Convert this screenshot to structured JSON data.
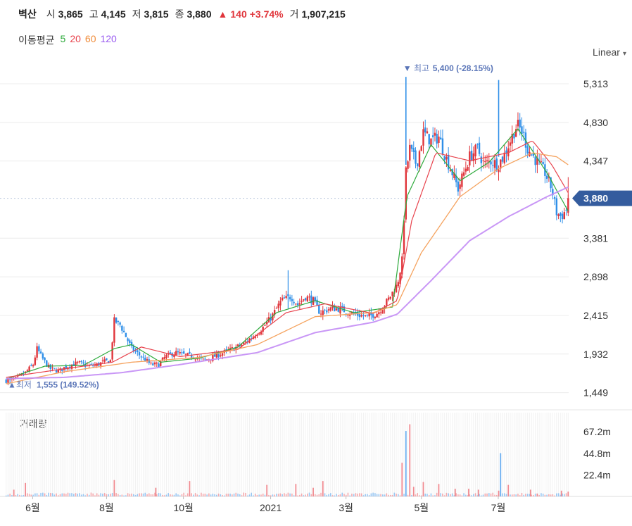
{
  "header": {
    "name": "벽산",
    "open_label": "시",
    "open": "3,865",
    "high_label": "고",
    "high": "4,145",
    "low_label": "저",
    "low": "3,815",
    "close_label": "종",
    "close": "3,880",
    "change_arrow": "▲",
    "change": "140",
    "change_pct": "+3.74%",
    "volume_label": "거",
    "volume": "1,907,215"
  },
  "ma_legend": {
    "title": "이동평균",
    "items": [
      {
        "label": "5",
        "color": "#2eaa3c"
      },
      {
        "label": "20",
        "color": "#e8434d"
      },
      {
        "label": "60",
        "color": "#f08c3a"
      },
      {
        "label": "120",
        "color": "#9a5cf0"
      }
    ]
  },
  "scale_button": {
    "label": "Linear",
    "chevron": "▾"
  },
  "volume_panel": {
    "title": "거래량"
  },
  "colors": {
    "up": "#e0353b",
    "down": "#2f8fe8",
    "grid": "#ececec",
    "price_tag_bg": "#345c9e",
    "annotation": "#5b76b8",
    "ma5": "#2eaa3c",
    "ma20": "#e8434d",
    "ma60": "#f5a35f",
    "ma120": "#c38cf5"
  },
  "chart_data": {
    "type": "candlestick",
    "price_axis": {
      "ticks": [
        1449,
        1932,
        2415,
        2898,
        3381,
        3880,
        4347,
        4830,
        5313
      ],
      "tick_labels": [
        "1,449",
        "1,932",
        "2,415",
        "2,898",
        "3,381",
        "4,347",
        "4,830",
        "5,313"
      ],
      "current_price_label": "3,880",
      "range": [
        1340,
        5480
      ]
    },
    "volume_axis": {
      "tick_labels": [
        "22.4m",
        "44.8m",
        "67.2m"
      ],
      "ticks": [
        22.4,
        44.8,
        67.2
      ],
      "unit": "m",
      "range": [
        0,
        90
      ]
    },
    "x_axis": {
      "tick_labels": [
        "6월",
        "8월",
        "10월",
        "2021",
        "3월",
        "5월",
        "7월"
      ]
    },
    "annotations": {
      "high": {
        "marker": "▼",
        "label": "최고",
        "value": "5,400",
        "pct": "(-28.15%)"
      },
      "low": {
        "marker": "▲",
        "label": "최저",
        "value": "1,555",
        "pct": "(149.52%)"
      }
    },
    "close_path": [
      [
        0,
        1600
      ],
      [
        10,
        1620
      ],
      [
        20,
        1700
      ],
      [
        28,
        1800
      ],
      [
        32,
        2000
      ],
      [
        38,
        1870
      ],
      [
        45,
        1750
      ],
      [
        55,
        1720
      ],
      [
        60,
        1760
      ],
      [
        68,
        1800
      ],
      [
        75,
        1820
      ],
      [
        85,
        1780
      ],
      [
        95,
        1800
      ],
      [
        100,
        1830
      ],
      [
        108,
        1850
      ],
      [
        112,
        2350
      ],
      [
        118,
        2300
      ],
      [
        124,
        2150
      ],
      [
        130,
        2000
      ],
      [
        140,
        1900
      ],
      [
        150,
        1800
      ],
      [
        158,
        1800
      ],
      [
        165,
        1900
      ],
      [
        175,
        1950
      ],
      [
        185,
        1920
      ],
      [
        195,
        1900
      ],
      [
        205,
        1850
      ],
      [
        215,
        1900
      ],
      [
        225,
        1950
      ],
      [
        235,
        2000
      ],
      [
        245,
        2050
      ],
      [
        255,
        2150
      ],
      [
        265,
        2250
      ],
      [
        275,
        2400
      ],
      [
        285,
        2600
      ],
      [
        295,
        2650
      ],
      [
        302,
        2550
      ],
      [
        310,
        2650
      ],
      [
        318,
        2600
      ],
      [
        325,
        2450
      ],
      [
        335,
        2500
      ],
      [
        345,
        2500
      ],
      [
        355,
        2450
      ],
      [
        365,
        2420
      ],
      [
        375,
        2400
      ],
      [
        385,
        2450
      ],
      [
        395,
        2600
      ],
      [
        405,
        2800
      ],
      [
        410,
        3100
      ],
      [
        414,
        4200
      ],
      [
        418,
        4500
      ],
      [
        425,
        4300
      ],
      [
        432,
        4700
      ],
      [
        440,
        4600
      ],
      [
        448,
        4650
      ],
      [
        455,
        4400
      ],
      [
        462,
        4200
      ],
      [
        468,
        4000
      ],
      [
        474,
        4200
      ],
      [
        480,
        4400
      ],
      [
        488,
        4500
      ],
      [
        495,
        4300
      ],
      [
        502,
        4350
      ],
      [
        509,
        4300
      ],
      [
        515,
        4400
      ],
      [
        522,
        4600
      ],
      [
        529,
        4800
      ],
      [
        535,
        4700
      ],
      [
        540,
        4500
      ],
      [
        546,
        4400
      ],
      [
        552,
        4300
      ],
      [
        558,
        4200
      ],
      [
        565,
        4000
      ],
      [
        570,
        3700
      ],
      [
        575,
        3650
      ],
      [
        580,
        3740
      ],
      [
        582,
        3880
      ]
    ],
    "ma_paths": {
      "ma5": [
        [
          0,
          1620
        ],
        [
          40,
          1780
        ],
        [
          80,
          1790
        ],
        [
          112,
          2000
        ],
        [
          130,
          2050
        ],
        [
          160,
          1830
        ],
        [
          200,
          1880
        ],
        [
          240,
          2020
        ],
        [
          280,
          2450
        ],
        [
          320,
          2600
        ],
        [
          360,
          2450
        ],
        [
          400,
          2520
        ],
        [
          415,
          3900
        ],
        [
          440,
          4550
        ],
        [
          470,
          4100
        ],
        [
          500,
          4330
        ],
        [
          530,
          4750
        ],
        [
          560,
          4200
        ],
        [
          582,
          3720
        ]
      ],
      "ma20": [
        [
          0,
          1640
        ],
        [
          50,
          1730
        ],
        [
          110,
          1830
        ],
        [
          140,
          2020
        ],
        [
          180,
          1900
        ],
        [
          240,
          1990
        ],
        [
          290,
          2450
        ],
        [
          330,
          2560
        ],
        [
          380,
          2440
        ],
        [
          405,
          2600
        ],
        [
          420,
          3600
        ],
        [
          445,
          4450
        ],
        [
          480,
          4350
        ],
        [
          520,
          4450
        ],
        [
          545,
          4600
        ],
        [
          565,
          4300
        ],
        [
          582,
          3950
        ]
      ],
      "ma60": [
        [
          0,
          1560
        ],
        [
          60,
          1710
        ],
        [
          130,
          1830
        ],
        [
          200,
          1890
        ],
        [
          260,
          2050
        ],
        [
          320,
          2400
        ],
        [
          380,
          2450
        ],
        [
          405,
          2550
        ],
        [
          430,
          3200
        ],
        [
          470,
          3900
        ],
        [
          510,
          4250
        ],
        [
          545,
          4450
        ],
        [
          570,
          4400
        ],
        [
          582,
          4300
        ]
      ],
      "ma120": [
        [
          0,
          1625
        ],
        [
          60,
          1640
        ],
        [
          120,
          1700
        ],
        [
          180,
          1800
        ],
        [
          260,
          1950
        ],
        [
          320,
          2200
        ],
        [
          380,
          2330
        ],
        [
          405,
          2430
        ],
        [
          440,
          2850
        ],
        [
          480,
          3350
        ],
        [
          520,
          3650
        ],
        [
          560,
          3900
        ],
        [
          582,
          4020
        ]
      ]
    },
    "volume_spikes": [
      [
        8,
        7
      ],
      [
        20,
        14
      ],
      [
        112,
        17
      ],
      [
        155,
        9
      ],
      [
        190,
        16
      ],
      [
        270,
        12
      ],
      [
        300,
        13
      ],
      [
        318,
        9
      ],
      [
        328,
        16
      ],
      [
        410,
        35
      ],
      [
        414,
        68
      ],
      [
        418,
        75
      ],
      [
        422,
        10
      ],
      [
        432,
        15
      ],
      [
        448,
        13
      ],
      [
        465,
        8
      ],
      [
        479,
        8
      ],
      [
        489,
        7
      ],
      [
        510,
        6
      ],
      [
        512,
        45
      ],
      [
        520,
        12
      ],
      [
        543,
        7
      ],
      [
        550,
        3
      ],
      [
        575,
        6
      ],
      [
        582,
        5
      ]
    ]
  }
}
